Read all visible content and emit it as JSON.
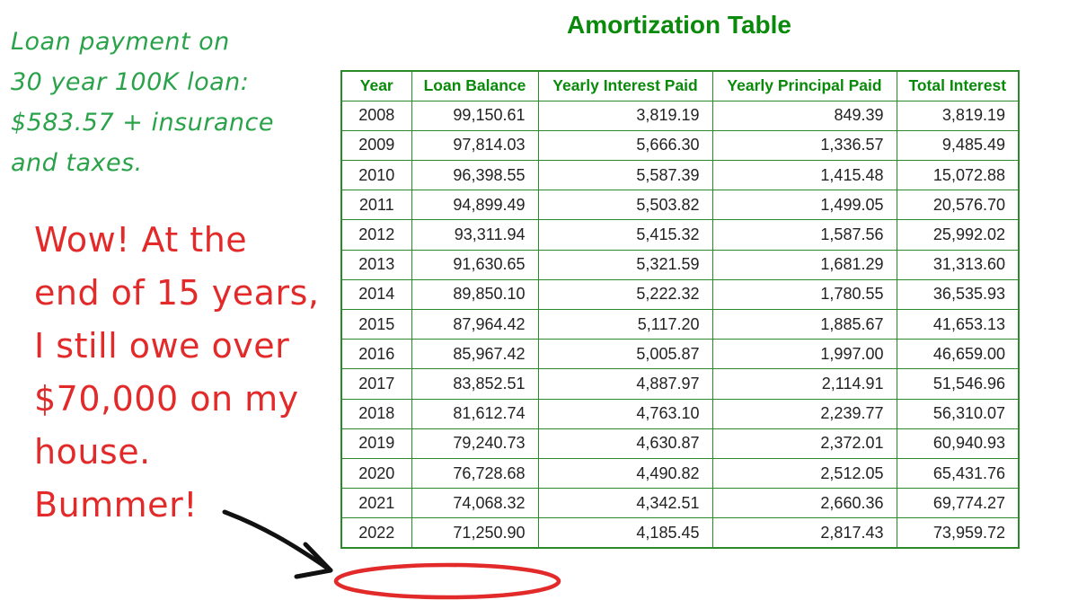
{
  "notes": {
    "payment_note": "Loan payment on\n30 year 100K loan:\n$583.57 + insurance\nand taxes.",
    "reaction_note": "Wow! At the\nend of 15 years,\nI still owe over\n$70,000 on my\nhouse.\nBummer!"
  },
  "table": {
    "title": "Amortization Table",
    "headers": [
      "Year",
      "Loan Balance",
      "Yearly Interest Paid",
      "Yearly Principal Paid",
      "Total Interest"
    ],
    "rows": [
      [
        "2008",
        "99,150.61",
        "3,819.19",
        "849.39",
        "3,819.19"
      ],
      [
        "2009",
        "97,814.03",
        "5,666.30",
        "1,336.57",
        "9,485.49"
      ],
      [
        "2010",
        "96,398.55",
        "5,587.39",
        "1,415.48",
        "15,072.88"
      ],
      [
        "2011",
        "94,899.49",
        "5,503.82",
        "1,499.05",
        "20,576.70"
      ],
      [
        "2012",
        "93,311.94",
        "5,415.32",
        "1,587.56",
        "25,992.02"
      ],
      [
        "2013",
        "91,630.65",
        "5,321.59",
        "1,681.29",
        "31,313.60"
      ],
      [
        "2014",
        "89,850.10",
        "5,222.32",
        "1,780.55",
        "36,535.93"
      ],
      [
        "2015",
        "87,964.42",
        "5,117.20",
        "1,885.67",
        "41,653.13"
      ],
      [
        "2016",
        "85,967.42",
        "5,005.87",
        "1,997.00",
        "46,659.00"
      ],
      [
        "2017",
        "83,852.51",
        "4,887.97",
        "2,114.91",
        "51,546.96"
      ],
      [
        "2018",
        "81,612.74",
        "4,763.10",
        "2,239.77",
        "56,310.07"
      ],
      [
        "2019",
        "79,240.73",
        "4,630.87",
        "2,372.01",
        "60,940.93"
      ],
      [
        "2020",
        "76,728.68",
        "4,490.82",
        "2,512.05",
        "65,431.76"
      ],
      [
        "2021",
        "74,068.32",
        "4,342.51",
        "2,660.36",
        "69,774.27"
      ],
      [
        "2022",
        "71,250.90",
        "4,185.45",
        "2,817.43",
        "73,959.72"
      ]
    ]
  },
  "colors": {
    "green_note": "#2aa24a",
    "red_note": "#e22a2a",
    "table_border": "#2a8a2a",
    "title": "#0a8a0a"
  }
}
